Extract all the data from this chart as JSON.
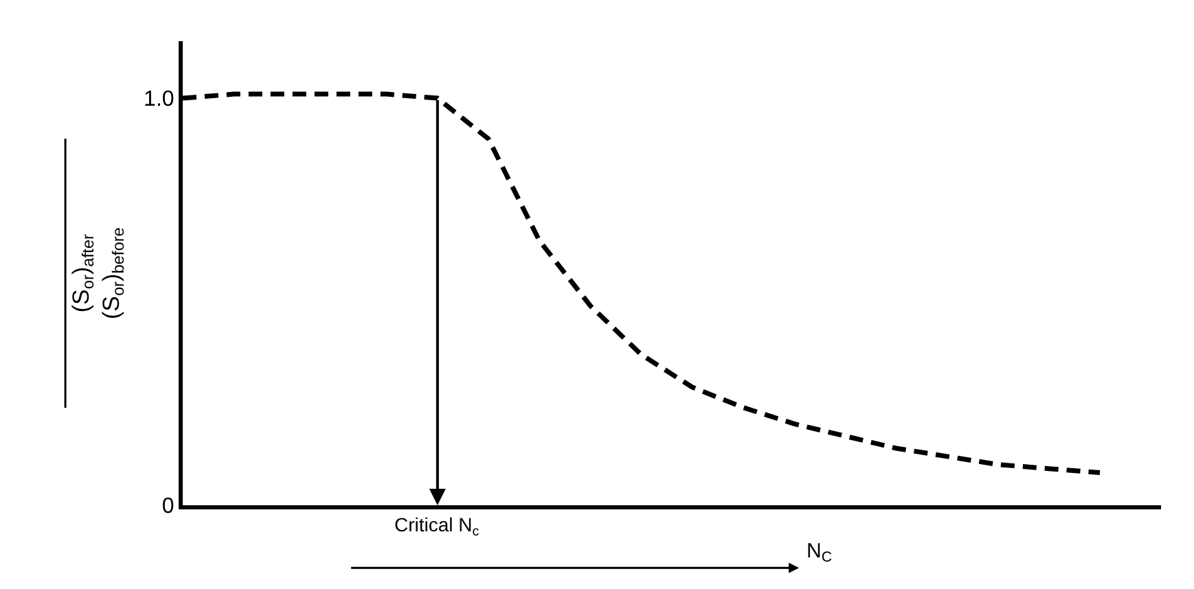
{
  "chart_data": {
    "type": "line",
    "xlabel": "N$_{C}$",
    "ylabel": "(S$_{or}$)$_{after}$\n(S$_{or}$)$_{before}$",
    "categories": [
      null,
      null,
      null,
      null,
      null,
      null,
      null,
      null,
      null,
      null,
      null,
      null,
      null,
      null,
      null,
      null,
      null,
      null,
      null
    ],
    "series": [
      {
        "color": "#000000",
        "values": [
          1.0,
          1.01,
          1.01,
          1.01,
          1.01,
          1.0,
          0.9,
          0.65,
          0.49,
          0.37,
          0.29,
          0.24,
          0.2,
          0.17,
          0.14,
          0.12,
          0.1,
          0.09,
          0.08
        ]
      }
    ],
    "ylim": [
      0,
      1.14
    ],
    "yticks": [
      0,
      {
        "value": 1,
        "label": "1.0"
      }
    ],
    "marker": "none",
    "line_style": "dashed",
    "annotations": [
      "Critical N$_{c}$"
    ]
  }
}
